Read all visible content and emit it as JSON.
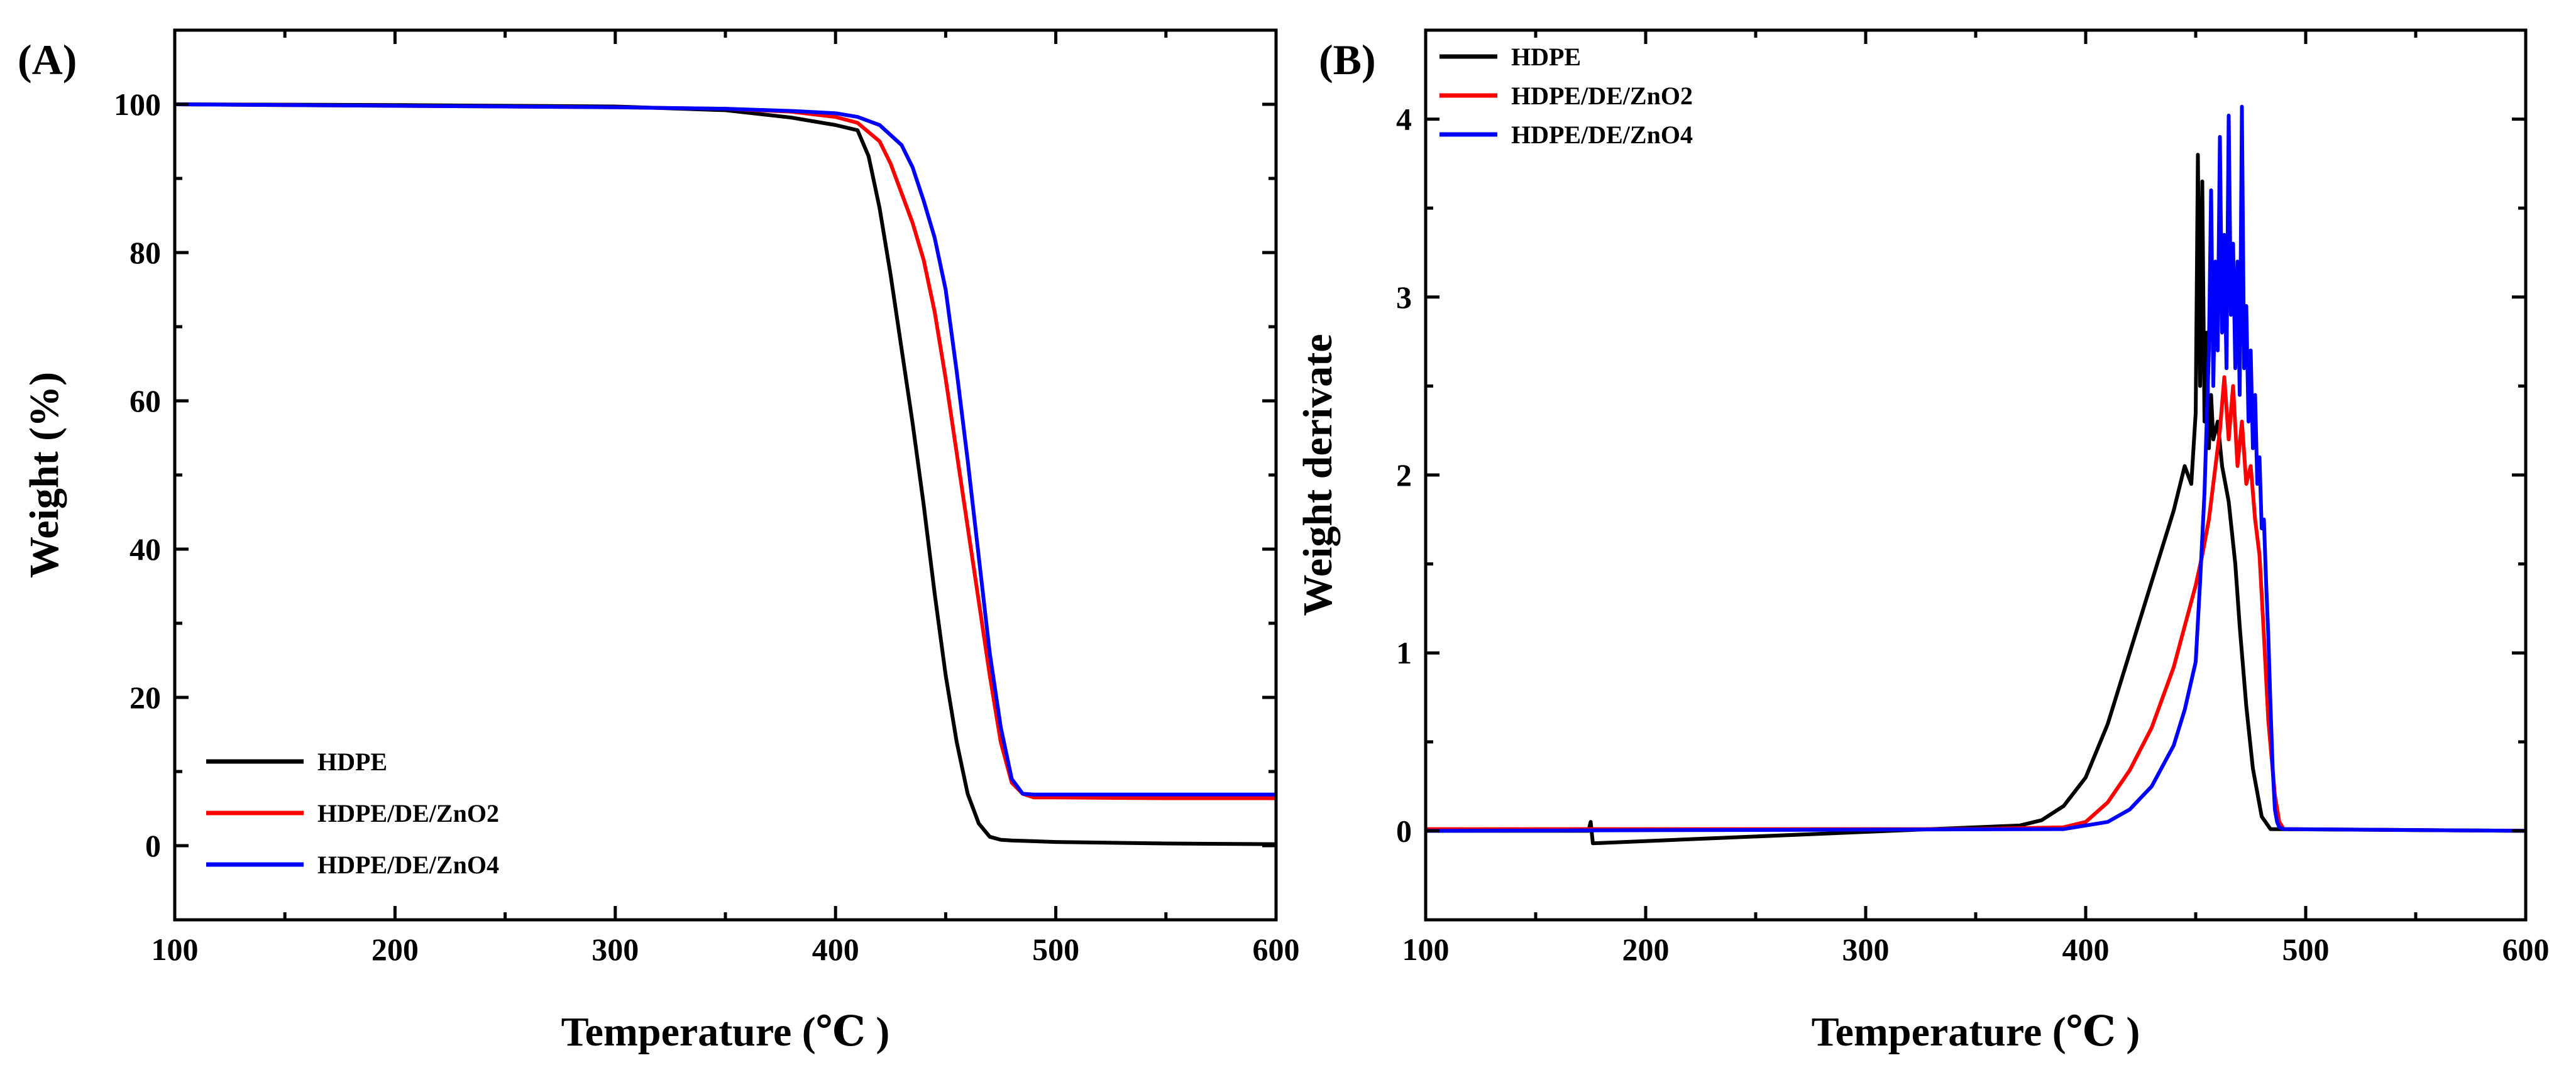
{
  "chart_data": [
    {
      "type": "line",
      "panel_label": "(A)",
      "xlabel": "Temperature (℃ )",
      "ylabel": "Weight (%)",
      "xlim": [
        100,
        600
      ],
      "ylim": [
        -10,
        110
      ],
      "xticks": [
        100,
        200,
        300,
        400,
        500,
        600
      ],
      "yticks": [
        0,
        20,
        40,
        60,
        80,
        100
      ],
      "legend_position": "bottom-left",
      "series": [
        {
          "name": "HDPE",
          "color": "#000000",
          "x": [
            100,
            200,
            300,
            350,
            380,
            400,
            410,
            415,
            420,
            425,
            430,
            435,
            440,
            445,
            450,
            455,
            460,
            465,
            470,
            475,
            480,
            490,
            500,
            550,
            600
          ],
          "y": [
            100,
            99.9,
            99.7,
            99.2,
            98.2,
            97.2,
            96.5,
            93,
            86,
            77,
            67,
            57,
            46,
            34,
            23,
            14,
            7,
            3,
            1.2,
            0.8,
            0.7,
            0.6,
            0.5,
            0.3,
            0.2
          ]
        },
        {
          "name": "HDPE/DE/ZnO2",
          "color": "#ff0000",
          "x": [
            100,
            200,
            300,
            350,
            380,
            400,
            410,
            420,
            425,
            430,
            435,
            440,
            445,
            450,
            455,
            460,
            465,
            470,
            475,
            480,
            485,
            490,
            500,
            550,
            600
          ],
          "y": [
            100,
            99.8,
            99.6,
            99.4,
            99,
            98.3,
            97.5,
            95,
            92,
            88,
            84,
            79,
            72,
            63,
            53,
            43,
            33,
            23,
            14,
            8.5,
            7,
            6.5,
            6.5,
            6.4,
            6.4
          ]
        },
        {
          "name": "HDPE/DE/ZnO4",
          "color": "#0000ff",
          "x": [
            100,
            200,
            300,
            350,
            380,
            400,
            410,
            420,
            430,
            435,
            440,
            445,
            450,
            455,
            460,
            465,
            470,
            475,
            480,
            485,
            490,
            500,
            550,
            600
          ],
          "y": [
            100,
            99.8,
            99.6,
            99.4,
            99.1,
            98.8,
            98.3,
            97.2,
            94.5,
            91.5,
            87,
            82,
            75,
            64,
            52,
            39,
            26,
            16,
            9,
            7,
            6.9,
            6.9,
            6.9,
            6.9
          ]
        }
      ]
    },
    {
      "type": "line",
      "panel_label": "(B)",
      "xlabel": "Temperature (℃ )",
      "ylabel": "Weight derivate",
      "xlim": [
        100,
        600
      ],
      "ylim": [
        -0.5,
        4.5
      ],
      "xticks": [
        100,
        200,
        300,
        400,
        500,
        600
      ],
      "yticks": [
        0,
        1,
        2,
        3,
        4
      ],
      "legend_position": "top-left",
      "series": [
        {
          "name": "HDPE",
          "color": "#000000",
          "x": [
            100,
            174,
            175,
            176,
            350,
            370,
            380,
            390,
            400,
            410,
            420,
            430,
            440,
            445,
            448,
            450,
            451,
            452,
            453,
            454,
            455,
            456,
            457,
            458,
            460,
            462,
            465,
            468,
            470,
            473,
            476,
            480,
            484,
            600
          ],
          "y": [
            0,
            0,
            0.05,
            -0.07,
            0.02,
            0.03,
            0.06,
            0.14,
            0.3,
            0.6,
            1.0,
            1.4,
            1.8,
            2.05,
            1.95,
            2.35,
            3.8,
            2.5,
            3.65,
            2.3,
            2.8,
            2.15,
            2.45,
            2.2,
            2.3,
            2.05,
            1.85,
            1.5,
            1.15,
            0.7,
            0.35,
            0.08,
            0.01,
            0
          ]
        },
        {
          "name": "HDPE/DE/ZnO2",
          "color": "#ff0000",
          "x": [
            100,
            350,
            390,
            400,
            410,
            420,
            430,
            440,
            445,
            450,
            453,
            456,
            459,
            461,
            463,
            465,
            467,
            469,
            471,
            473,
            475,
            477,
            479,
            481,
            483,
            486,
            488,
            490,
            600
          ],
          "y": [
            0.01,
            0.01,
            0.02,
            0.05,
            0.16,
            0.34,
            0.58,
            0.92,
            1.15,
            1.38,
            1.55,
            1.75,
            2.05,
            2.25,
            2.55,
            2.2,
            2.5,
            2.05,
            2.3,
            1.95,
            2.05,
            1.75,
            1.55,
            1.1,
            0.62,
            0.2,
            0.05,
            0.01,
            0
          ]
        },
        {
          "name": "HDPE/DE/ZnO4",
          "color": "#0000ff",
          "x": [
            100,
            390,
            410,
            420,
            430,
            440,
            445,
            450,
            452,
            454,
            456,
            457,
            458,
            459,
            460,
            461,
            462,
            463,
            464,
            465,
            466,
            467,
            468,
            469,
            470,
            471,
            472,
            473,
            474,
            475,
            476,
            477,
            478,
            479,
            480,
            481,
            482,
            483,
            484,
            485,
            486,
            487,
            488,
            490,
            600
          ],
          "y": [
            0,
            0.01,
            0.05,
            0.12,
            0.25,
            0.48,
            0.68,
            0.95,
            1.4,
            1.9,
            2.7,
            3.6,
            2.5,
            3.2,
            2.7,
            3.9,
            2.8,
            3.35,
            2.6,
            4.02,
            2.9,
            3.3,
            2.6,
            3.2,
            2.45,
            4.07,
            2.6,
            2.95,
            2.3,
            2.7,
            2.15,
            2.45,
            1.95,
            2.1,
            1.7,
            1.75,
            1.4,
            1.1,
            0.7,
            0.35,
            0.12,
            0.05,
            0.02,
            0.01,
            0
          ]
        }
      ]
    }
  ]
}
